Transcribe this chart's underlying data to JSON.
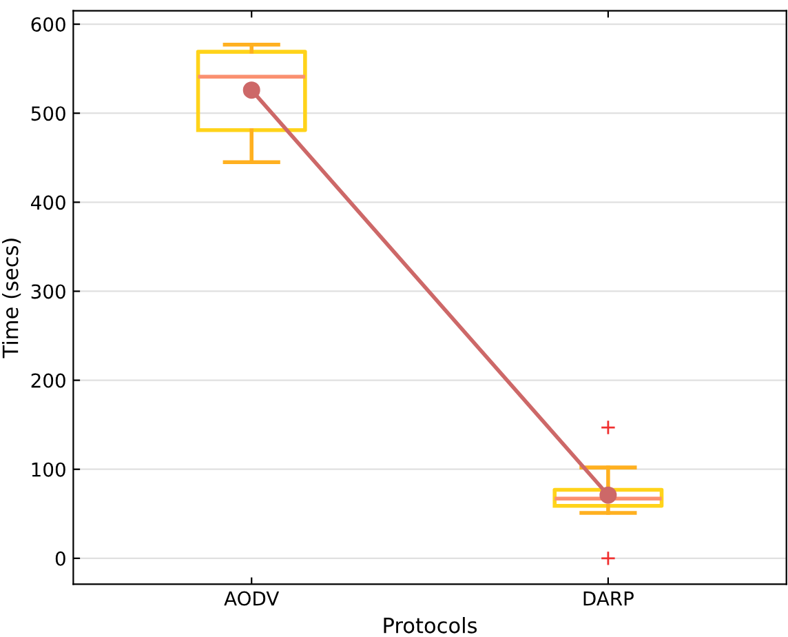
{
  "chart_data": {
    "type": "box",
    "xlabel": "Protocols",
    "ylabel": "Time (secs)",
    "categories": [
      "AODV",
      "DARP"
    ],
    "boxes": [
      {
        "low": 445,
        "q1": 481,
        "median": 541,
        "q3": 569,
        "high": 577
      },
      {
        "low": 51,
        "q1": 59,
        "median": 67,
        "q3": 77,
        "high": 102,
        "outliers": [
          147,
          0
        ]
      }
    ],
    "series": [
      {
        "type": "line",
        "color": "#cd6868",
        "values": [
          526,
          71
        ]
      }
    ],
    "marker": "circle",
    "ylim": [
      -29,
      615
    ],
    "yticks": [
      0,
      100,
      200,
      300,
      400,
      500,
      600
    ],
    "grid": "y"
  }
}
